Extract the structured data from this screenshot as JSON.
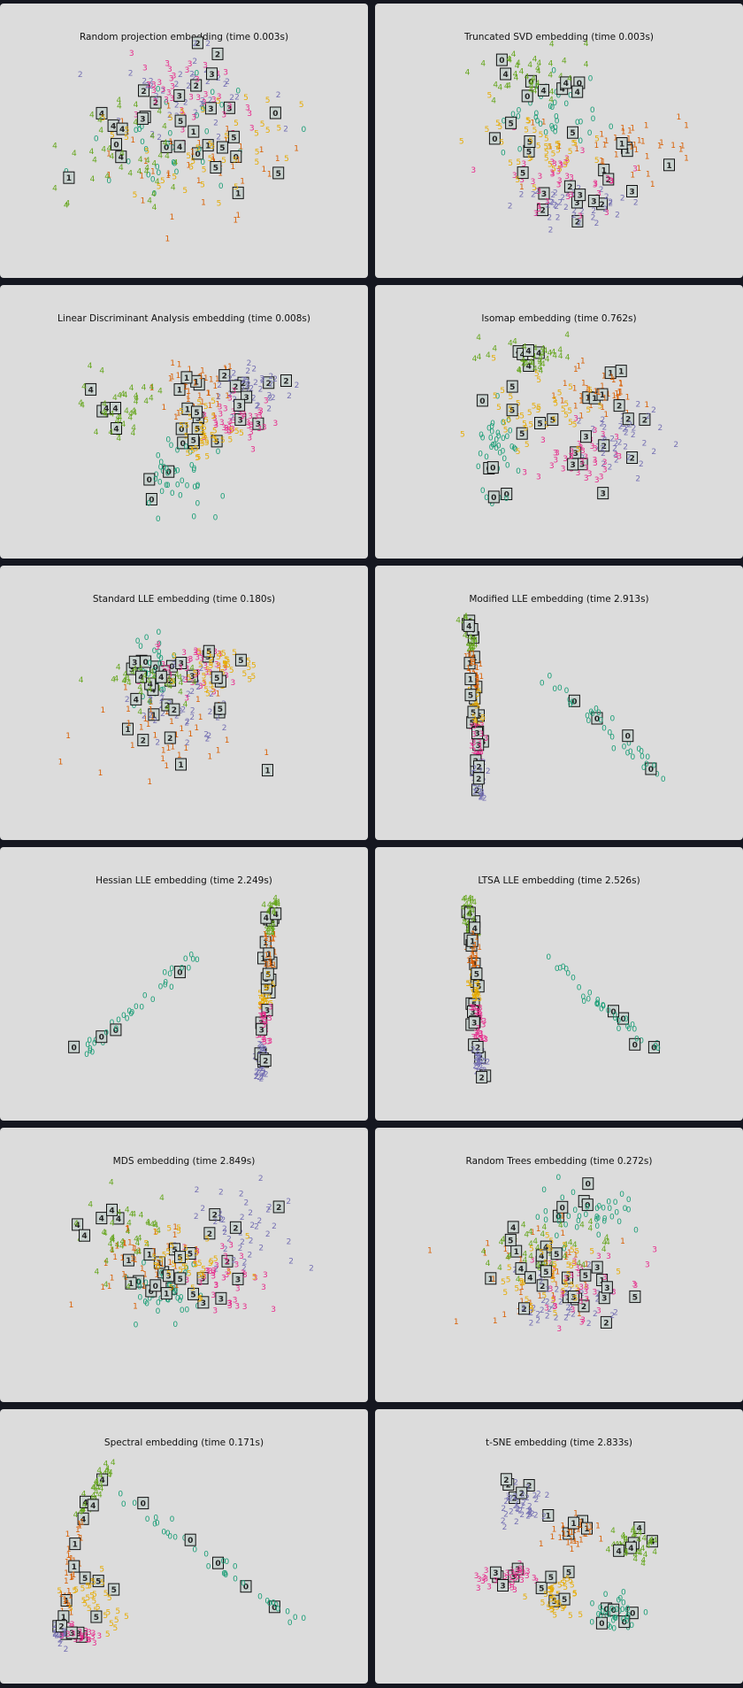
{
  "colors": {
    "page_background": "#151720",
    "panel_background": "#dcdcdc",
    "digit_colors": [
      "#1b9e77",
      "#d95f02",
      "#7570b3",
      "#e7298a",
      "#66a61e",
      "#e6ab02"
    ],
    "thumbnail_border": "#111111",
    "thumbnail_fill": "#c8d2cf"
  },
  "chart_data": [
    {
      "type": "scatter",
      "title": "Random projection embedding (time 0.003s)",
      "shape": "blob",
      "grid": false,
      "legend": "none",
      "clusters": [
        {
          "digit": 0,
          "cx": 0.5,
          "cy": 0.45,
          "sx": 0.18,
          "sy": 0.14
        },
        {
          "digit": 1,
          "cx": 0.55,
          "cy": 0.58,
          "sx": 0.2,
          "sy": 0.12
        },
        {
          "digit": 2,
          "cx": 0.5,
          "cy": 0.28,
          "sx": 0.18,
          "sy": 0.12
        },
        {
          "digit": 3,
          "cx": 0.52,
          "cy": 0.25,
          "sx": 0.17,
          "sy": 0.12
        },
        {
          "digit": 4,
          "cx": 0.3,
          "cy": 0.55,
          "sx": 0.13,
          "sy": 0.15
        },
        {
          "digit": 5,
          "cx": 0.6,
          "cy": 0.5,
          "sx": 0.18,
          "sy": 0.14
        }
      ]
    },
    {
      "type": "scatter",
      "title": "Truncated SVD embedding (time 0.003s)",
      "shape": "blob",
      "grid": false,
      "legend": "none",
      "clusters": [
        {
          "digit": 0,
          "cx": 0.45,
          "cy": 0.3,
          "sx": 0.13,
          "sy": 0.1
        },
        {
          "digit": 1,
          "cx": 0.72,
          "cy": 0.48,
          "sx": 0.13,
          "sy": 0.08
        },
        {
          "digit": 2,
          "cx": 0.56,
          "cy": 0.78,
          "sx": 0.1,
          "sy": 0.06
        },
        {
          "digit": 3,
          "cx": 0.48,
          "cy": 0.66,
          "sx": 0.12,
          "sy": 0.08
        },
        {
          "digit": 4,
          "cx": 0.42,
          "cy": 0.18,
          "sx": 0.1,
          "sy": 0.08
        },
        {
          "digit": 5,
          "cx": 0.42,
          "cy": 0.5,
          "sx": 0.13,
          "sy": 0.1
        }
      ]
    },
    {
      "type": "scatter",
      "title": "Linear Discriminant Analysis embedding (time 0.008s)",
      "shape": "blob",
      "grid": false,
      "legend": "none",
      "clusters": [
        {
          "digit": 0,
          "cx": 0.48,
          "cy": 0.74,
          "sx": 0.07,
          "sy": 0.1
        },
        {
          "digit": 1,
          "cx": 0.55,
          "cy": 0.3,
          "sx": 0.07,
          "sy": 0.08
        },
        {
          "digit": 2,
          "cx": 0.75,
          "cy": 0.3,
          "sx": 0.08,
          "sy": 0.07
        },
        {
          "digit": 3,
          "cx": 0.72,
          "cy": 0.45,
          "sx": 0.07,
          "sy": 0.06
        },
        {
          "digit": 4,
          "cx": 0.25,
          "cy": 0.4,
          "sx": 0.07,
          "sy": 0.08
        },
        {
          "digit": 5,
          "cx": 0.58,
          "cy": 0.53,
          "sx": 0.06,
          "sy": 0.06
        }
      ]
    },
    {
      "type": "scatter",
      "title": "Isomap embedding (time 0.762s)",
      "shape": "blob",
      "grid": false,
      "legend": "none",
      "clusters": [
        {
          "digit": 0,
          "cx": 0.26,
          "cy": 0.6,
          "sx": 0.04,
          "sy": 0.12
        },
        {
          "digit": 1,
          "cx": 0.66,
          "cy": 0.33,
          "sx": 0.09,
          "sy": 0.06
        },
        {
          "digit": 2,
          "cx": 0.74,
          "cy": 0.55,
          "sx": 0.09,
          "sy": 0.08
        },
        {
          "digit": 3,
          "cx": 0.6,
          "cy": 0.65,
          "sx": 0.08,
          "sy": 0.07
        },
        {
          "digit": 4,
          "cx": 0.4,
          "cy": 0.16,
          "sx": 0.08,
          "sy": 0.05
        },
        {
          "digit": 5,
          "cx": 0.45,
          "cy": 0.45,
          "sx": 0.1,
          "sy": 0.09
        }
      ]
    },
    {
      "type": "scatter",
      "title": "Standard LLE embedding (time 0.180s)",
      "shape": "blob",
      "grid": false,
      "legend": "none",
      "clusters": [
        {
          "digit": 0,
          "cx": 0.38,
          "cy": 0.3,
          "sx": 0.05,
          "sy": 0.06
        },
        {
          "digit": 1,
          "cx": 0.45,
          "cy": 0.58,
          "sx": 0.16,
          "sy": 0.14
        },
        {
          "digit": 2,
          "cx": 0.48,
          "cy": 0.48,
          "sx": 0.12,
          "sy": 0.1
        },
        {
          "digit": 3,
          "cx": 0.55,
          "cy": 0.3,
          "sx": 0.1,
          "sy": 0.08
        },
        {
          "digit": 4,
          "cx": 0.4,
          "cy": 0.38,
          "sx": 0.1,
          "sy": 0.05
        },
        {
          "digit": 5,
          "cx": 0.63,
          "cy": 0.3,
          "sx": 0.08,
          "sy": 0.06
        }
      ]
    },
    {
      "type": "scatter",
      "title": "Modified LLE embedding (time 2.913s)",
      "shape": "arm",
      "grid": false,
      "legend": "none"
    },
    {
      "type": "scatter",
      "title": "Hessian LLE embedding (time 2.249s)",
      "shape": "arm-left",
      "grid": false,
      "legend": "none"
    },
    {
      "type": "scatter",
      "title": "LTSA LLE embedding (time 2.526s)",
      "shape": "arm",
      "grid": false,
      "legend": "none"
    },
    {
      "type": "scatter",
      "title": "MDS embedding (time 2.849s)",
      "shape": "blob",
      "grid": false,
      "legend": "none",
      "clusters": [
        {
          "digit": 0,
          "cx": 0.45,
          "cy": 0.58,
          "sx": 0.1,
          "sy": 0.07
        },
        {
          "digit": 1,
          "cx": 0.34,
          "cy": 0.45,
          "sx": 0.1,
          "sy": 0.1
        },
        {
          "digit": 2,
          "cx": 0.72,
          "cy": 0.3,
          "sx": 0.1,
          "sy": 0.09
        },
        {
          "digit": 3,
          "cx": 0.66,
          "cy": 0.52,
          "sx": 0.09,
          "sy": 0.08
        },
        {
          "digit": 4,
          "cx": 0.28,
          "cy": 0.32,
          "sx": 0.09,
          "sy": 0.1
        },
        {
          "digit": 5,
          "cx": 0.55,
          "cy": 0.45,
          "sx": 0.09,
          "sy": 0.1
        }
      ]
    },
    {
      "type": "scatter",
      "title": "Random Trees embedding (time 0.272s)",
      "shape": "blob",
      "grid": false,
      "legend": "none",
      "clusters": [
        {
          "digit": 0,
          "cx": 0.62,
          "cy": 0.22,
          "sx": 0.1,
          "sy": 0.07
        },
        {
          "digit": 1,
          "cx": 0.45,
          "cy": 0.5,
          "sx": 0.18,
          "sy": 0.12
        },
        {
          "digit": 2,
          "cx": 0.55,
          "cy": 0.65,
          "sx": 0.14,
          "sy": 0.08
        },
        {
          "digit": 3,
          "cx": 0.6,
          "cy": 0.58,
          "sx": 0.12,
          "sy": 0.09
        },
        {
          "digit": 4,
          "cx": 0.45,
          "cy": 0.4,
          "sx": 0.12,
          "sy": 0.08
        },
        {
          "digit": 5,
          "cx": 0.5,
          "cy": 0.5,
          "sx": 0.13,
          "sy": 0.1
        }
      ]
    },
    {
      "type": "scatter",
      "title": "Spectral embedding (time 0.171s)",
      "shape": "triangle",
      "grid": false,
      "legend": "none"
    },
    {
      "type": "scatter",
      "title": "t-SNE embedding (time 2.833s)",
      "shape": "blob",
      "grid": false,
      "legend": "none",
      "clusters": [
        {
          "digit": 0,
          "cx": 0.72,
          "cy": 0.8,
          "sx": 0.04,
          "sy": 0.04
        },
        {
          "digit": 1,
          "cx": 0.55,
          "cy": 0.4,
          "sx": 0.05,
          "sy": 0.04
        },
        {
          "digit": 2,
          "cx": 0.37,
          "cy": 0.27,
          "sx": 0.05,
          "sy": 0.05
        },
        {
          "digit": 3,
          "cx": 0.3,
          "cy": 0.62,
          "sx": 0.05,
          "sy": 0.04
        },
        {
          "digit": 4,
          "cx": 0.78,
          "cy": 0.45,
          "sx": 0.05,
          "sy": 0.05
        },
        {
          "digit": 5,
          "cx": 0.5,
          "cy": 0.72,
          "sx": 0.04,
          "sy": 0.06
        }
      ]
    }
  ]
}
